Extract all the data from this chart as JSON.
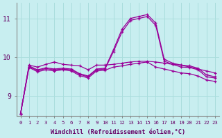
{
  "xlabel": "Windchill (Refroidissement éolien,°C)",
  "background_color": "#c8eef0",
  "grid_color": "#aadddd",
  "line_color": "#990099",
  "xlim": [
    -0.5,
    23.5
  ],
  "ylim": [
    8.5,
    11.4
  ],
  "yticks": [
    9,
    10,
    11
  ],
  "xticks": [
    0,
    1,
    2,
    3,
    4,
    5,
    6,
    7,
    8,
    9,
    10,
    11,
    12,
    13,
    14,
    15,
    16,
    17,
    18,
    19,
    20,
    21,
    22,
    23
  ],
  "series": [
    [
      8.55,
      9.8,
      9.75,
      9.82,
      9.88,
      9.82,
      9.8,
      9.78,
      9.68,
      9.8,
      9.8,
      9.82,
      9.85,
      9.88,
      9.9,
      9.9,
      9.88,
      9.85,
      9.82,
      9.8,
      9.75,
      9.7,
      9.65,
      9.6
    ],
    [
      8.55,
      9.78,
      9.68,
      9.73,
      9.7,
      9.72,
      9.7,
      9.58,
      9.52,
      9.7,
      9.72,
      10.2,
      10.72,
      11.0,
      11.05,
      11.1,
      10.88,
      9.95,
      9.85,
      9.8,
      9.78,
      9.72,
      9.55,
      9.5
    ],
    [
      8.55,
      9.76,
      9.66,
      9.71,
      9.68,
      9.7,
      9.68,
      9.56,
      9.5,
      9.68,
      9.7,
      10.15,
      10.65,
      10.95,
      11.0,
      11.05,
      10.82,
      9.9,
      9.82,
      9.75,
      9.74,
      9.68,
      9.5,
      9.47
    ],
    [
      8.55,
      9.74,
      9.63,
      9.68,
      9.65,
      9.68,
      9.65,
      9.53,
      9.47,
      9.65,
      9.67,
      9.75,
      9.78,
      9.82,
      9.85,
      9.88,
      9.75,
      9.7,
      9.65,
      9.6,
      9.58,
      9.52,
      9.42,
      9.38
    ]
  ]
}
